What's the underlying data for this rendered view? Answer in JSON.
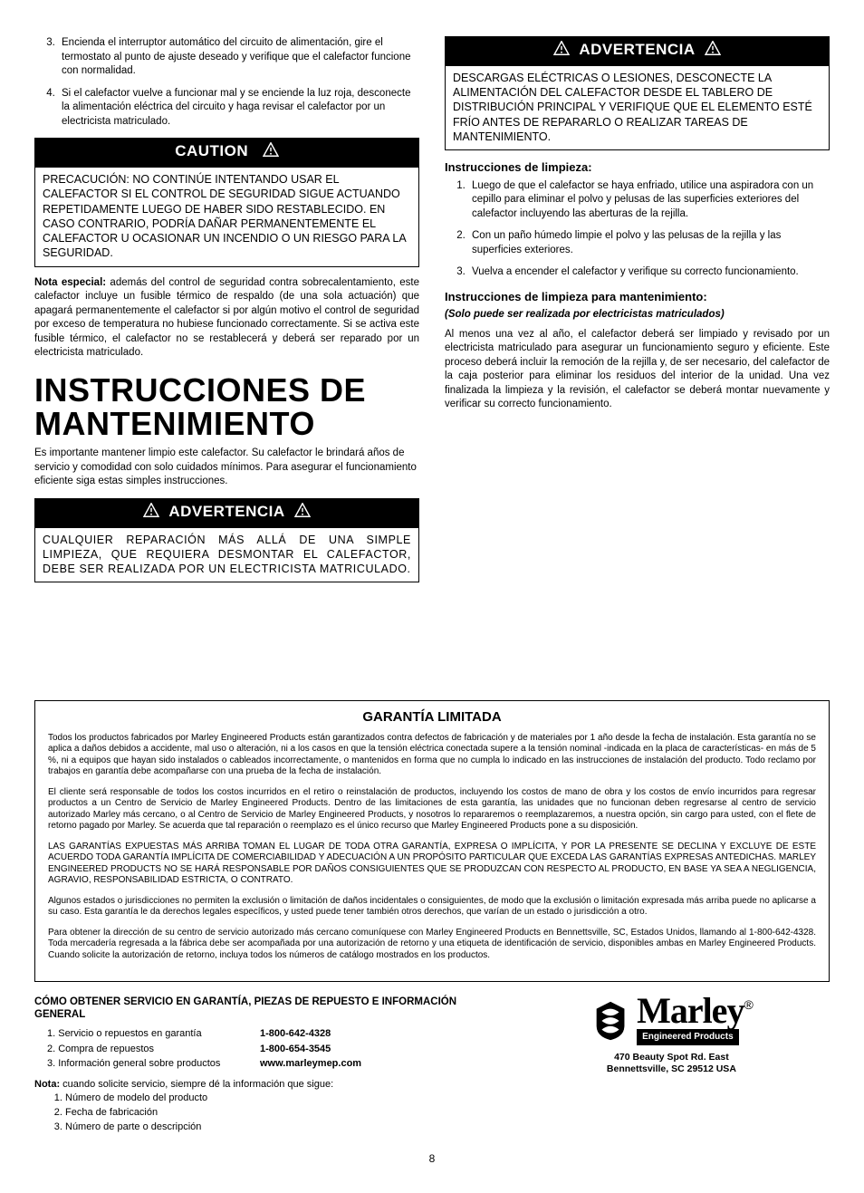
{
  "left": {
    "topList": [
      "Encienda el interruptor automático del circuito de alimentación, gire el termostato al punto de ajuste deseado y verifique que el calefactor funcione con normalidad.",
      "Si el calefactor vuelve a funcionar mal y se enciende la luz roja, desconecte la alimentación eléctrica del circuito y haga revisar el calefactor por un electricista matriculado."
    ],
    "topListStart": 3,
    "cautionLabel": "CAUTION",
    "cautionBody": "PRECACUCIÓN: NO CONTINÚE INTENTANDO USAR EL CALEFACTOR SI EL CONTROL DE SEGURIDAD SIGUE ACTUANDO REPETIDAMENTE LUEGO DE HABER SIDO RESTABLECIDO. EN CASO CONTRARIO, PODRÍA DAÑAR PERMANENTEMENTE EL CALEFACTOR U OCASIONAR UN INCENDIO O UN RIESGO PARA LA SEGURIDAD.",
    "noteLabel": "Nota especial:",
    "noteBody": " además del control de seguridad contra sobrecalentamiento, este calefactor incluye un fusible térmico de respaldo (de una sola actuación) que apagará permanentemente el calefactor si por algún motivo el control de seguridad por exceso de temperatura no hubiese funcionado correctamente. Si se activa este fusible térmico, el calefactor no se restablecerá y deberá ser reparado por un electricista matriculado.",
    "h1": "INSTRUCCIONES DE MANTENIMIENTO",
    "intro": "Es importante mantener limpio este calefactor. Su calefactor le brindará años de servicio y comodidad con solo cuidados mínimos. Para asegurar el funcionamiento eficiente siga estas simples instrucciones.",
    "adv1Label": "ADVERTENCIA",
    "adv1Body": "CUALQUIER REPARACIÓN MÁS ALLÁ DE UNA SIMPLE LIMPIEZA, QUE REQUIERA DESMONTAR EL CALEFACTOR, DEBE SER REALIZADA POR UN ELECTRICISTA MATRICULADO."
  },
  "right": {
    "adv2Label": "ADVERTENCIA",
    "adv2Body": "DESCARGAS ELÉCTRICAS O LESIONES, DESCONECTE LA ALIMENTACIÓN DEL CALEFACTOR DESDE EL TABLERO DE DISTRIBUCIÓN PRINCIPAL Y VERIFIQUE QUE EL ELEMENTO ESTÉ FRÍO ANTES DE REPARARLO O REALIZAR TAREAS DE MANTENIMIENTO.",
    "cleanHead": "Instrucciones de limpieza:",
    "cleanList": [
      "Luego de que el calefactor se haya enfriado, utilice una aspiradora con un cepillo para eliminar el polvo y pelusas de las superficies exteriores del calefactor incluyendo las aberturas de la rejilla.",
      "Con un paño húmedo limpie el polvo y las pelusas de la rejilla y las superficies exteriores.",
      "Vuelva a encender el calefactor y verifique su correcto funcionamiento."
    ],
    "maintHead": "Instrucciones de limpieza para mantenimiento:",
    "maintSub": "(Solo puede ser realizada por electricistas matriculados)",
    "maintPara": "Al menos una vez al año, el calefactor deberá ser limpiado y revisado por un electricista matriculado para asegurar un funcionamiento seguro y eficiente. Este proceso deberá incluir la remoción de la rejilla y, de ser necesario, del calefactor de la caja posterior para eliminar los residuos del interior de la unidad. Una vez finalizada la limpieza y la revisión, el calefactor se deberá montar nuevamente y verificar su correcto funcionamiento."
  },
  "warranty": {
    "title": "GARANTÍA LIMITADA",
    "paras": [
      "Todos los productos fabricados por Marley Engineered Products están garantizados contra defectos de fabricación y de materiales por 1 año desde la fecha de instalación. Esta garantía no se aplica a daños debidos a accidente, mal uso o alteración, ni a los casos en que la tensión eléctrica conectada supere a la tensión nominal -indicada en la placa de características- en más de 5 %, ni a equipos que hayan sido instalados o cableados incorrectamente, o mantenidos en forma que no cumpla lo indicado en las instrucciones de instalación del producto. Todo reclamo por trabajos en garantía debe acompañarse con una prueba de  la fecha de instalación.",
      "El cliente será responsable de todos los costos incurridos en el retiro o reinstalación de productos, incluyendo los costos de mano de obra y los costos de envío incurridos para regresar productos a un Centro de Servicio de Marley Engineered Products. Dentro de las limitaciones de esta garantía, las unidades que no funcionan deben regresarse al centro de servicio autorizado Marley más cercano, o al Centro de Servicio de Marley Engineered Products, y nosotros lo repararemos o reemplazaremos, a nuestra opción, sin cargo para usted, con el flete de retorno pagado por Marley. Se acuerda que tal reparación o reemplazo es el único recurso que Marley Engineered Products pone a su disposición.",
      "LAS GARANTÍAS EXPUESTAS MÁS ARRIBA TOMAN EL LUGAR DE TODA OTRA GARANTÍA, EXPRESA O IMPLÍCITA, Y POR LA PRESENTE SE DECLINA Y EXCLUYE DE ESTE ACUERDO TODA GARANTÍA IMPLÍCITA DE COMERCIABILIDAD Y ADECUACIÓN A UN PROPÓSITO PARTICULAR QUE EXCEDA LAS GARANTÍAS EXPRESAS ANTEDICHAS.  MARLEY ENGINEERED PRODUCTS NO SE HARÁ RESPONSABLE POR DAÑOS CONSIGUIENTES QUE SE PRODUZCAN CON RESPECTO AL PRODUCTO, EN BASE YA SEA A NEGLIGENCIA, AGRAVIO, RESPONSABILIDAD ESTRICTA, O CONTRATO.",
      "Algunos estados o jurisdicciones no permiten la exclusión o limitación de daños incidentales o consiguientes, de modo que la exclusión o limitación expresada más arriba puede no aplicarse a su caso. Esta garantía le da derechos legales específicos, y usted puede tener también otros derechos, que varían de un estado o jurisdicción a otro.",
      "Para obtener la dirección de su centro de servicio autorizado más cercano comuníquese con Marley Engineered Products en Bennettsville, SC, Estados Unidos, llamando al 1-800-642-4328. Toda mercadería regresada a la fábrica debe ser acompañada por una autorización de retorno y una etiqueta de identificación de servicio, disponibles ambas en Marley Engineered Products.  Cuando solicite la autorización de retorno, incluya todos los números de catálogo mostrados en los productos."
    ]
  },
  "footer": {
    "head": "CÓMO OBTENER SERVICIO EN GARANTÍA, PIEZAS DE REPUESTO E INFORMACIÓN GENERAL",
    "contacts": [
      {
        "label": "1. Servicio o repuestos en garantía",
        "value": "1-800-642-4328"
      },
      {
        "label": "2. Compra de repuestos",
        "value": "1-800-654-3545"
      },
      {
        "label": "3. Información general sobre productos",
        "value": "www.marleymep.com"
      }
    ],
    "noteLead": "Nota:",
    "noteText": " cuando solicite servicio, siempre dé la información que sigue:",
    "noteList": [
      "Número de modelo del producto",
      "Fecha de fabricación",
      "Número de parte o descripción"
    ],
    "brand": "Marley",
    "brandSub": "Engineered Products",
    "addr1": "470 Beauty Spot Rd. East",
    "addr2": "Bennettsville, SC  29512 USA"
  },
  "pageNumber": "8"
}
